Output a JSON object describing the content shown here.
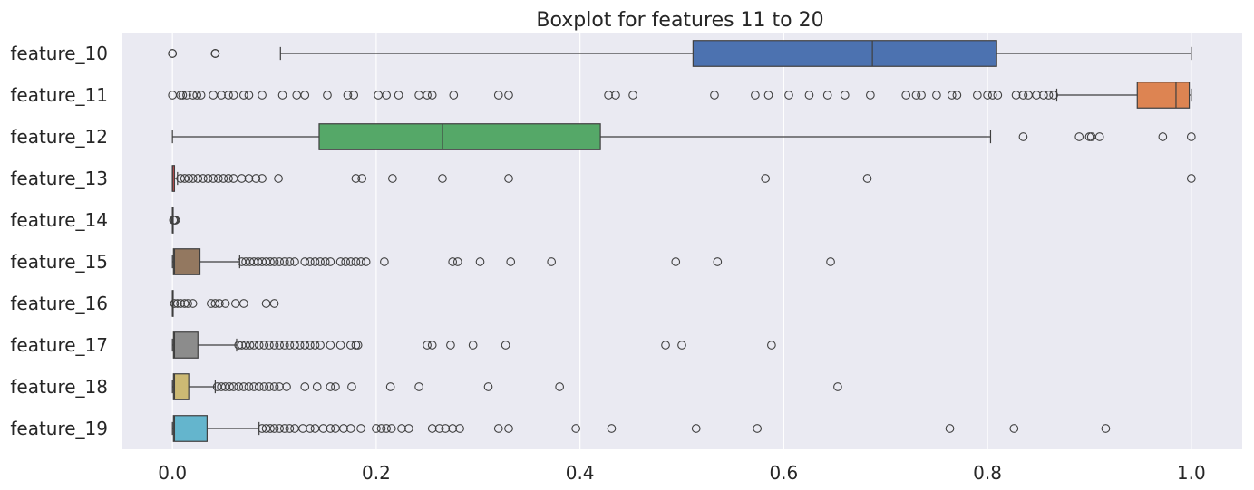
{
  "chart_data": {
    "type": "boxplot",
    "orientation": "horizontal",
    "title": "Boxplot for features 11 to 20",
    "xlabel": "",
    "ylabel": "",
    "xlim": [
      -0.05,
      1.05
    ],
    "xticks": [
      0.0,
      0.2,
      0.4,
      0.6,
      0.8,
      1.0
    ],
    "xtick_labels": [
      "0.0",
      "0.2",
      "0.4",
      "0.6",
      "0.8",
      "1.0"
    ],
    "grid": true,
    "background": "#eaeaf2",
    "series": [
      {
        "name": "feature_10",
        "color": "#4c72b0",
        "min": 0.106,
        "q1": 0.511,
        "median": 0.687,
        "q3": 0.809,
        "max": 1.0,
        "outliers": [
          0.0,
          0.0,
          0.042,
          0.042,
          0.042
        ]
      },
      {
        "name": "feature_11",
        "color": "#dd8452",
        "min": 0.868,
        "q1": 0.947,
        "median": 0.985,
        "q3": 0.998,
        "max": 1.0,
        "outliers": [
          0.0,
          0.008,
          0.01,
          0.014,
          0.02,
          0.024,
          0.028,
          0.04,
          0.048,
          0.055,
          0.06,
          0.07,
          0.075,
          0.088,
          0.108,
          0.122,
          0.13,
          0.152,
          0.172,
          0.178,
          0.202,
          0.21,
          0.222,
          0.242,
          0.25,
          0.255,
          0.276,
          0.32,
          0.33,
          0.428,
          0.435,
          0.452,
          0.532,
          0.572,
          0.585,
          0.605,
          0.625,
          0.643,
          0.66,
          0.685,
          0.72,
          0.73,
          0.735,
          0.75,
          0.765,
          0.77,
          0.79,
          0.8,
          0.805,
          0.81,
          0.828,
          0.835,
          0.84,
          0.848,
          0.855,
          0.86,
          0.865
        ]
      },
      {
        "name": "feature_12",
        "color": "#55a868",
        "min": 0.0,
        "q1": 0.144,
        "median": 0.265,
        "q3": 0.42,
        "max": 0.803,
        "outliers": [
          0.835,
          0.89,
          0.9,
          0.902,
          0.91,
          0.972,
          1.0
        ]
      },
      {
        "name": "feature_13",
        "color": "#c44e52",
        "min": 0.0,
        "q1": 0.0,
        "median": 0.0,
        "q3": 0.002,
        "max": 0.005,
        "outliers": [
          0.008,
          0.012,
          0.016,
          0.02,
          0.025,
          0.03,
          0.035,
          0.04,
          0.045,
          0.05,
          0.055,
          0.06,
          0.068,
          0.075,
          0.082,
          0.088,
          0.104,
          0.18,
          0.186,
          0.216,
          0.265,
          0.33,
          0.582,
          0.682,
          1.0
        ]
      },
      {
        "name": "feature_14",
        "color": "#8172b3",
        "min": 0.0,
        "q1": 0.0,
        "median": 0.0,
        "q3": 0.0,
        "max": 0.0,
        "outliers": [
          0.001,
          0.002,
          0.003
        ]
      },
      {
        "name": "feature_15",
        "color": "#937860",
        "min": 0.0,
        "q1": 0.001,
        "median": 0.002,
        "q3": 0.027,
        "max": 0.066,
        "outliers": [
          0.068,
          0.072,
          0.076,
          0.08,
          0.084,
          0.088,
          0.092,
          0.096,
          0.1,
          0.105,
          0.11,
          0.115,
          0.12,
          0.13,
          0.135,
          0.14,
          0.145,
          0.15,
          0.155,
          0.165,
          0.17,
          0.175,
          0.18,
          0.185,
          0.19,
          0.208,
          0.275,
          0.28,
          0.302,
          0.332,
          0.372,
          0.494,
          0.535,
          0.646
        ]
      },
      {
        "name": "feature_16",
        "color": "#da8bc3",
        "min": 0.0,
        "q1": 0.0,
        "median": 0.0,
        "q3": 0.0,
        "max": 0.0,
        "outliers": [
          0.002,
          0.005,
          0.008,
          0.012,
          0.015,
          0.02,
          0.038,
          0.042,
          0.046,
          0.052,
          0.062,
          0.07,
          0.092,
          0.1
        ]
      },
      {
        "name": "feature_17",
        "color": "#8c8c8c",
        "min": 0.0,
        "q1": 0.001,
        "median": 0.002,
        "q3": 0.025,
        "max": 0.063,
        "outliers": [
          0.065,
          0.068,
          0.072,
          0.076,
          0.08,
          0.085,
          0.09,
          0.095,
          0.1,
          0.105,
          0.11,
          0.115,
          0.12,
          0.125,
          0.13,
          0.135,
          0.14,
          0.145,
          0.155,
          0.165,
          0.175,
          0.18,
          0.182,
          0.25,
          0.255,
          0.273,
          0.295,
          0.327,
          0.484,
          0.5,
          0.588
        ]
      },
      {
        "name": "feature_18",
        "color": "#ccb974",
        "min": 0.0,
        "q1": 0.001,
        "median": 0.002,
        "q3": 0.016,
        "max": 0.042,
        "outliers": [
          0.044,
          0.048,
          0.052,
          0.056,
          0.06,
          0.065,
          0.07,
          0.075,
          0.08,
          0.085,
          0.09,
          0.095,
          0.1,
          0.105,
          0.112,
          0.13,
          0.142,
          0.155,
          0.16,
          0.176,
          0.214,
          0.242,
          0.31,
          0.38,
          0.653
        ]
      },
      {
        "name": "feature_19",
        "color": "#64b5cd",
        "min": 0.0,
        "q1": 0.001,
        "median": 0.002,
        "q3": 0.034,
        "max": 0.085,
        "outliers": [
          0.088,
          0.092,
          0.096,
          0.1,
          0.105,
          0.11,
          0.115,
          0.12,
          0.128,
          0.135,
          0.14,
          0.148,
          0.155,
          0.16,
          0.168,
          0.175,
          0.185,
          0.2,
          0.205,
          0.21,
          0.215,
          0.225,
          0.232,
          0.255,
          0.262,
          0.268,
          0.275,
          0.282,
          0.32,
          0.33,
          0.396,
          0.431,
          0.514,
          0.574,
          0.763,
          0.826,
          0.916
        ]
      }
    ]
  }
}
